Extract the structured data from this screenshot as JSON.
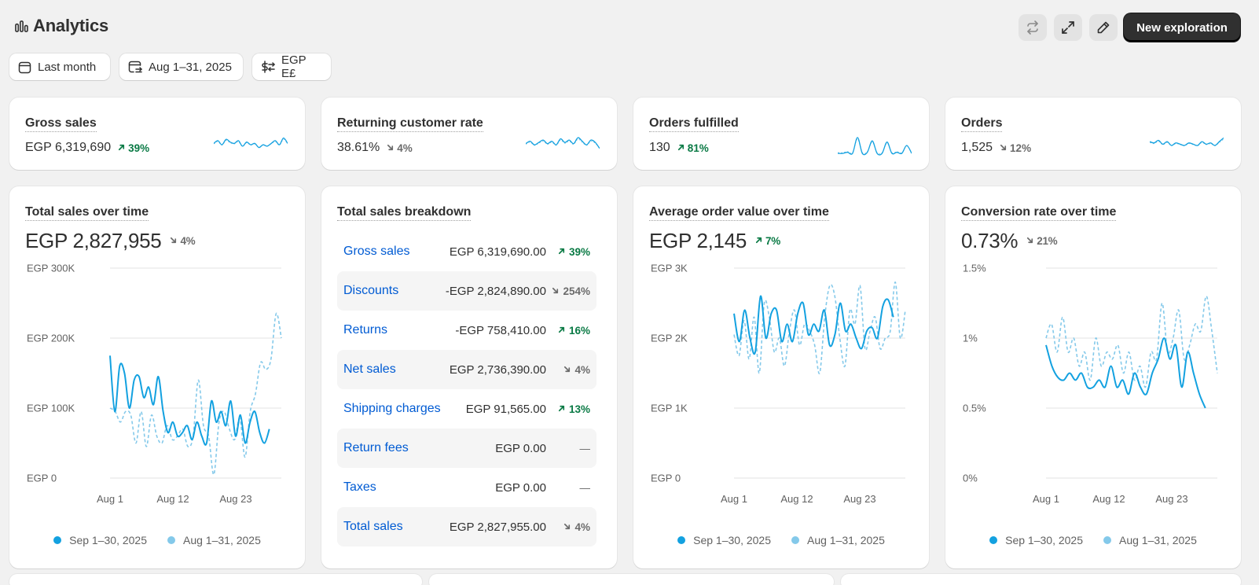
{
  "header": {
    "title": "Analytics",
    "new_button": "New exploration",
    "icons": [
      "chart-bars-icon",
      "refresh-icon",
      "expand-icon",
      "edit-icon"
    ]
  },
  "filters": [
    {
      "label": "Last month",
      "icon": "calendar-icon"
    },
    {
      "label": "Aug 1–31, 2025",
      "icon": "calendar-compare-icon"
    },
    {
      "label": "EGP E£",
      "icon": "currency-exchange-icon"
    }
  ],
  "metrics": [
    {
      "title": "Gross sales",
      "value": "EGP 6,319,690",
      "change": "39%",
      "direction": "up"
    },
    {
      "title": "Returning customer rate",
      "value": "38.61%",
      "change": "4%",
      "direction": "down"
    },
    {
      "title": "Orders fulfilled",
      "value": "130",
      "change": "81%",
      "direction": "up"
    },
    {
      "title": "Orders",
      "value": "1,525",
      "change": "12%",
      "direction": "down"
    }
  ],
  "charts": {
    "total_sales": {
      "title": "Total sales over time",
      "value": "EGP 2,827,955",
      "change": "4%",
      "direction": "down"
    },
    "breakdown": {
      "title": "Total sales breakdown"
    },
    "aov": {
      "title": "Average order value over time",
      "value": "EGP 2,145",
      "change": "7%",
      "direction": "up"
    },
    "conversion": {
      "title": "Conversion rate over time",
      "value": "0.73%",
      "change": "21%",
      "direction": "down"
    }
  },
  "breakdown": [
    {
      "label": "Gross sales",
      "amount": "EGP 6,319,690.00",
      "change": "39%",
      "direction": "up"
    },
    {
      "label": "Discounts",
      "amount": "-EGP 2,824,890.00",
      "change": "254%",
      "direction": "down"
    },
    {
      "label": "Returns",
      "amount": "-EGP 758,410.00",
      "change": "16%",
      "direction": "up"
    },
    {
      "label": "Net sales",
      "amount": "EGP 2,736,390.00",
      "change": "4%",
      "direction": "down"
    },
    {
      "label": "Shipping charges",
      "amount": "EGP 91,565.00",
      "change": "13%",
      "direction": "up"
    },
    {
      "label": "Return fees",
      "amount": "EGP 0.00",
      "change": "—",
      "direction": "none"
    },
    {
      "label": "Taxes",
      "amount": "EGP 0.00",
      "change": "—",
      "direction": "none"
    },
    {
      "label": "Total sales",
      "amount": "EGP 2,827,955.00",
      "change": "4%",
      "direction": "down"
    }
  ],
  "legend": {
    "current": "Sep 1–30, 2025",
    "previous": "Aug 1–31, 2025"
  },
  "colors": {
    "current": "#13a1e0",
    "previous": "#84c9ea",
    "up": "#0a7a45",
    "down": "#6b6b6b",
    "link": "#005bd3"
  },
  "chart_data": [
    {
      "type": "line",
      "title": "Total sales over time",
      "x_ticks": [
        "Aug 1",
        "Aug 12",
        "Aug 23"
      ],
      "y_ticks": [
        "EGP 0",
        "EGP 100K",
        "EGP 200K",
        "EGP 300K"
      ],
      "ylim": [
        0,
        300000
      ],
      "series": [
        {
          "name": "Sep 1–30, 2025",
          "style": "solid",
          "values": [
            175000,
            95000,
            160000,
            150000,
            100000,
            140000,
            145000,
            115000,
            130000,
            105000,
            145000,
            95000,
            65000,
            80000,
            60000,
            65000,
            75000,
            55000,
            80000,
            60000,
            50000,
            110000,
            80000,
            95000,
            75000,
            110000,
            60000,
            90000,
            50000,
            80000,
            95000,
            65000,
            50000,
            70000
          ]
        },
        {
          "name": "Aug 1–31, 2025",
          "style": "dashed",
          "values": [
            100000,
            95000,
            80000,
            95000,
            90000,
            50000,
            95000,
            45000,
            90000,
            60000,
            50000,
            75000,
            55000,
            60000,
            70000,
            45000,
            60000,
            140000,
            75000,
            60000,
            5000,
            80000,
            95000,
            70000,
            55000,
            85000,
            30000,
            95000,
            120000,
            165000,
            155000,
            170000,
            235000,
            200000
          ]
        }
      ]
    },
    {
      "type": "table",
      "title": "Total sales breakdown"
    },
    {
      "type": "line",
      "title": "Average order value over time",
      "x_ticks": [
        "Aug 1",
        "Aug 12",
        "Aug 23"
      ],
      "y_ticks": [
        "EGP 0",
        "EGP 1K",
        "EGP 2K",
        "EGP 3K"
      ],
      "ylim": [
        0,
        3000
      ],
      "series": [
        {
          "name": "Sep 1–30, 2025",
          "style": "solid",
          "values": [
            2350,
            1950,
            2400,
            2000,
            1800,
            2600,
            2000,
            2350,
            2400,
            1950,
            2200,
            1950,
            2350,
            2500,
            2050,
            2200,
            2100,
            2400,
            1900,
            2050,
            2500,
            2100,
            2200,
            2000,
            1850,
            2100,
            2150,
            2000,
            2450,
            2550,
            2300
          ]
        },
        {
          "name": "Aug 1–31, 2025",
          "style": "dashed",
          "values": [
            2050,
            1750,
            2250,
            1700,
            2300,
            1500,
            2500,
            2300,
            1800,
            2000,
            1600,
            2100,
            2400,
            1900,
            2200,
            2100,
            1900,
            1500,
            2300,
            2750,
            2600,
            2000,
            1600,
            2400,
            2200,
            2750,
            1850,
            2100,
            2300,
            1850,
            2000,
            2100,
            2800,
            2000,
            2400
          ]
        }
      ]
    },
    {
      "type": "line",
      "title": "Conversion rate over time",
      "x_ticks": [
        "Aug 1",
        "Aug 12",
        "Aug 23"
      ],
      "y_ticks": [
        "0%",
        "0.5%",
        "1%",
        "1.5%"
      ],
      "ylim": [
        0,
        1.5
      ],
      "series": [
        {
          "name": "Sep 1–30, 2025",
          "style": "solid",
          "values": [
            0.95,
            0.8,
            0.72,
            0.7,
            0.75,
            0.7,
            0.75,
            0.65,
            0.65,
            0.7,
            0.65,
            0.8,
            0.65,
            0.7,
            0.6,
            0.75,
            0.65,
            0.6,
            0.75,
            0.85,
            1.0,
            0.85,
            0.95,
            0.65,
            0.9,
            0.75,
            0.6,
            0.5
          ]
        },
        {
          "name": "Aug 1–31, 2025",
          "style": "dashed",
          "values": [
            1.0,
            1.1,
            0.9,
            1.15,
            0.9,
            1.0,
            0.8,
            0.9,
            0.7,
            1.0,
            0.8,
            0.9,
            0.85,
            0.95,
            0.75,
            0.9,
            0.7,
            0.8,
            0.65,
            0.9,
            0.85,
            1.25,
            0.9,
            1.0,
            1.2,
            0.85,
            0.95,
            1.1,
            1.05,
            1.3,
            1.05,
            0.75
          ]
        }
      ]
    }
  ],
  "sparklines": [
    [
      9,
      11,
      8,
      12,
      10,
      9,
      11,
      7,
      10,
      8,
      9,
      6,
      8,
      7,
      9,
      11,
      8,
      13,
      9
    ],
    [
      10,
      12,
      9,
      11,
      13,
      10,
      12,
      9,
      14,
      11,
      13,
      10,
      15,
      12,
      9,
      13,
      11,
      6
    ],
    [
      2,
      2,
      3,
      2,
      16,
      2,
      3,
      13,
      2,
      2,
      12,
      2,
      3,
      2,
      9,
      2
    ],
    [
      11,
      10,
      12,
      9,
      11,
      8,
      10,
      9,
      8,
      10,
      9,
      8,
      11,
      9,
      10,
      8,
      11,
      14
    ]
  ]
}
